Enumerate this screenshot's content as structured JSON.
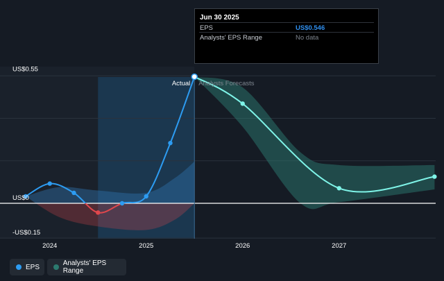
{
  "tooltip": {
    "date": "Jun 30 2025",
    "rows": [
      {
        "label": "EPS",
        "value": "US$0.546"
      },
      {
        "label": "Analysts' EPS Range",
        "value": "No data"
      }
    ]
  },
  "legend": [
    {
      "label": "EPS",
      "color": "#2d9cf2"
    },
    {
      "label": "Analysts' EPS Range",
      "color": "#2c7a6f"
    }
  ],
  "chart_data": {
    "type": "line",
    "y_tick_labels": [
      "US$0.55",
      "US$0",
      "-US$0.15"
    ],
    "x_tick_labels": [
      "2024",
      "2025",
      "2026",
      "2027"
    ],
    "section_labels": {
      "actual": "Actual",
      "forecast": "Analysts Forecasts"
    },
    "ylim": [
      -0.15,
      0.55
    ],
    "xlim": [
      2023.7,
      2027.99
    ],
    "grid": true,
    "colors": {
      "eps_positive": "#2d9cf2",
      "eps_negative": "#e0474c",
      "forecast_line": "#7ff4e8",
      "forecast_band": "#2c7a6f",
      "past_band": "#2f6ea8",
      "highlight": "#1d4a6e"
    },
    "highlight_range": [
      2024.5,
      2025.5
    ],
    "series": [
      {
        "name": "EPS",
        "points": [
          {
            "x": 2023.75,
            "y": 0.03
          },
          {
            "x": 2024.0,
            "y": 0.085
          },
          {
            "x": 2024.25,
            "y": 0.045
          },
          {
            "x": 2024.5,
            "y": -0.04
          },
          {
            "x": 2024.75,
            "y": 0.0
          },
          {
            "x": 2025.0,
            "y": 0.03
          },
          {
            "x": 2025.25,
            "y": 0.26
          },
          {
            "x": 2025.5,
            "y": 0.546
          }
        ]
      },
      {
        "name": "Analysts' EPS Range",
        "points": [
          {
            "x": 2025.5,
            "y": 0.546
          },
          {
            "x": 2026.0,
            "y": 0.43
          },
          {
            "x": 2027.0,
            "y": 0.065
          },
          {
            "x": 2027.99,
            "y": 0.115
          }
        ],
        "upper": [
          {
            "x": 2025.5,
            "y": 0.546
          },
          {
            "x": 2026.0,
            "y": 0.5
          },
          {
            "x": 2026.6,
            "y": 0.22
          },
          {
            "x": 2027.0,
            "y": 0.165
          },
          {
            "x": 2027.99,
            "y": 0.165
          }
        ],
        "lower": [
          {
            "x": 2025.5,
            "y": 0.546
          },
          {
            "x": 2026.0,
            "y": 0.33
          },
          {
            "x": 2026.6,
            "y": 0.0
          },
          {
            "x": 2027.0,
            "y": 0.005
          },
          {
            "x": 2027.99,
            "y": 0.06
          }
        ]
      }
    ],
    "past_range": {
      "upper": [
        {
          "x": 2023.75,
          "y": 0.03
        },
        {
          "x": 2024.1,
          "y": 0.07
        },
        {
          "x": 2024.5,
          "y": 0.055
        },
        {
          "x": 2025.0,
          "y": 0.045
        },
        {
          "x": 2025.3,
          "y": 0.11
        },
        {
          "x": 2025.5,
          "y": 0.18
        }
      ],
      "lower": [
        {
          "x": 2023.75,
          "y": 0.03
        },
        {
          "x": 2024.1,
          "y": -0.06
        },
        {
          "x": 2024.5,
          "y": -0.1
        },
        {
          "x": 2025.0,
          "y": -0.115
        },
        {
          "x": 2025.3,
          "y": -0.07
        },
        {
          "x": 2025.5,
          "y": 0.0
        }
      ]
    }
  }
}
